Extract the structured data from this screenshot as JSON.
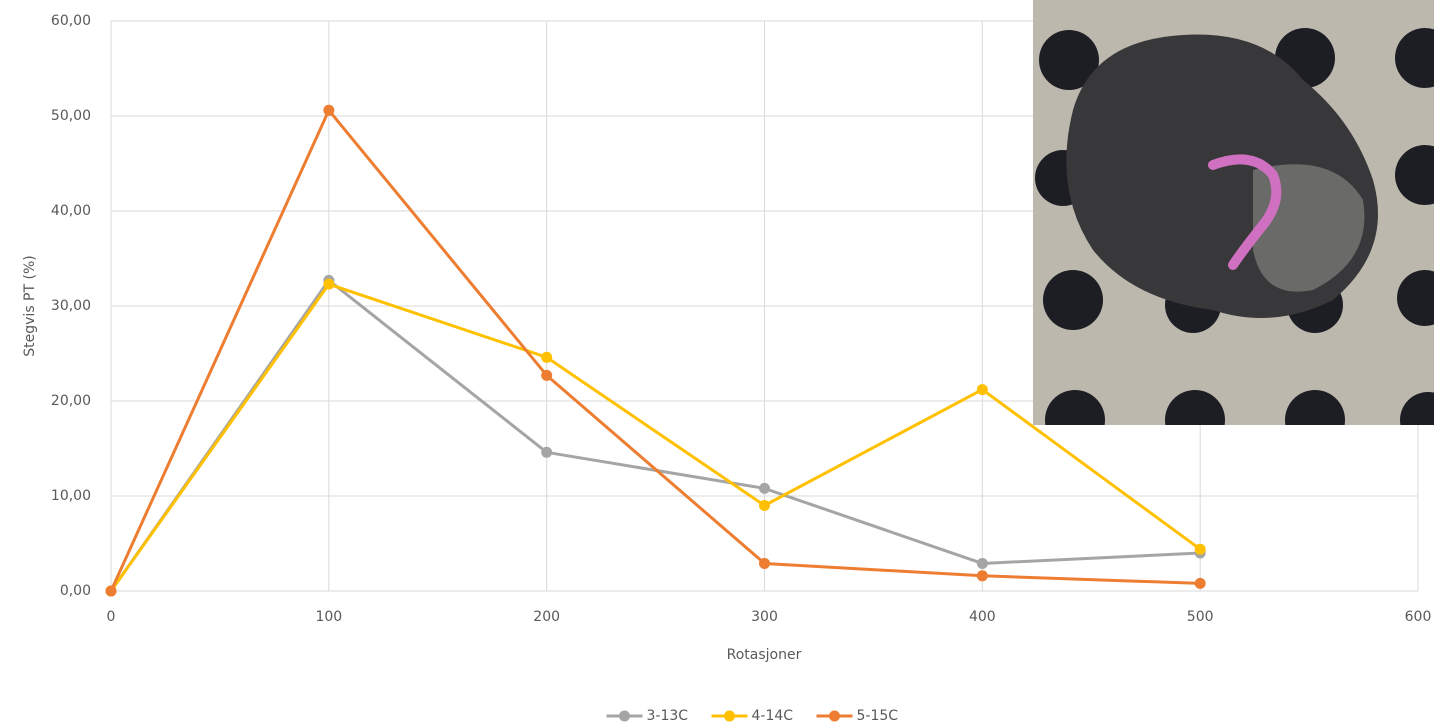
{
  "chart_data": {
    "type": "line",
    "x_label": "Rotasjoner",
    "y_label": "Stegvis PT (%)",
    "x": [
      0,
      100,
      200,
      300,
      400,
      500
    ],
    "series": [
      {
        "name": "3-13C",
        "color": "#a5a5a5",
        "values": [
          0,
          32.7,
          14.6,
          10.8,
          2.9,
          4.0
        ]
      },
      {
        "name": "4-14C",
        "color": "#ffc000",
        "values": [
          0,
          32.3,
          24.6,
          9.0,
          21.2,
          4.4
        ]
      },
      {
        "name": "5-15C",
        "color": "#ed7d31",
        "values": [
          0,
          50.6,
          22.7,
          2.9,
          1.6,
          0.8
        ]
      }
    ],
    "xlim": [
      0,
      600
    ],
    "xticks": [
      0,
      100,
      200,
      300,
      400,
      500,
      600
    ],
    "ylim": [
      0,
      60
    ],
    "yticks": [
      {
        "value": 0,
        "label": "0,00"
      },
      {
        "value": 10,
        "label": "10,00"
      },
      {
        "value": 20,
        "label": "20,00"
      },
      {
        "value": 30,
        "label": "30,00"
      },
      {
        "value": 40,
        "label": "40,00"
      },
      {
        "value": 50,
        "label": "50,00"
      },
      {
        "value": 60,
        "label": "60,00"
      }
    ],
    "grid": true,
    "legend_position": "bottom"
  }
}
